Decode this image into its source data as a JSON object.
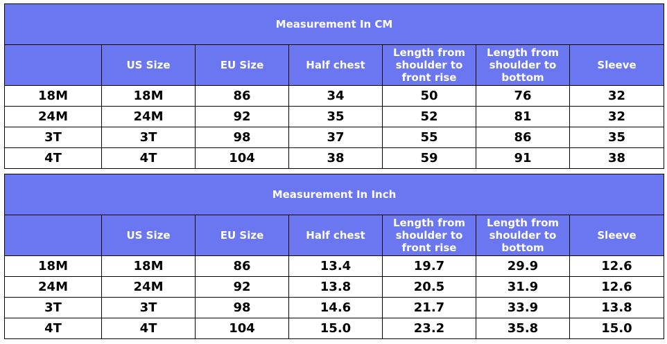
{
  "cm_table": {
    "title": "Measurement In CM",
    "headers": [
      "",
      "US Size",
      "EU Size",
      "Half chest",
      "Length from shoulder to front rise",
      "Length from shoulder to bottom",
      "Sleeve"
    ],
    "rows": [
      [
        "18M",
        "18M",
        "86",
        "34",
        "50",
        "76",
        "32"
      ],
      [
        "24M",
        "24M",
        "92",
        "35",
        "52",
        "81",
        "32"
      ],
      [
        "3T",
        "3T",
        "98",
        "37",
        "55",
        "86",
        "35"
      ],
      [
        "4T",
        "4T",
        "104",
        "38",
        "59",
        "91",
        "38"
      ]
    ]
  },
  "inch_table": {
    "title": "Measurement In Inch",
    "headers": [
      "",
      "US Size",
      "EU Size",
      "Half chest",
      "Length from shoulder to front rise",
      "Length from shoulder to bottom",
      "Sleeve"
    ],
    "rows": [
      [
        "18M",
        "18M",
        "86",
        "13.4",
        "19.7",
        "29.9",
        "12.6"
      ],
      [
        "24M",
        "24M",
        "92",
        "13.8",
        "20.5",
        "31.9",
        "12.6"
      ],
      [
        "3T",
        "3T",
        "98",
        "14.6",
        "21.7",
        "33.9",
        "13.8"
      ],
      [
        "4T",
        "4T",
        "104",
        "15.0",
        "23.2",
        "35.8",
        "15.0"
      ]
    ]
  },
  "colors": {
    "header_background": "#6b77f0",
    "header_text": "#ffffff",
    "border": "#000000",
    "cell_background": "#ffffff"
  }
}
